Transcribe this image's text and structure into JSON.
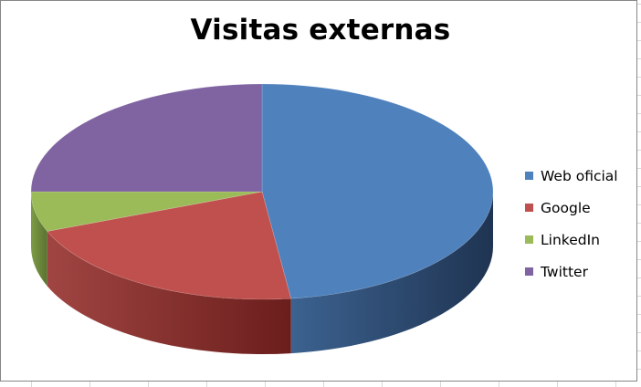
{
  "chart_data": {
    "type": "pie",
    "style": "3d",
    "title": "Visitas externas",
    "slices": [
      {
        "label": "Web oficial",
        "value": 48,
        "color": "#4F81BD",
        "side_dark": "#1F3452",
        "side_light": "#3C6290"
      },
      {
        "label": "Google",
        "value": 21,
        "color": "#C0504D",
        "side_dark": "#6B1E1C",
        "side_light": "#A04542"
      },
      {
        "label": "LinkedIn",
        "value": 6,
        "color": "#9BBB59",
        "side_dark": "#5A7230",
        "side_light": "#7E9C46"
      },
      {
        "label": "Twitter",
        "value": 25,
        "color": "#8064A2",
        "side_dark": "#4A3768",
        "side_light": "#6C5290"
      }
    ],
    "start_angle_deg": 0,
    "direction": "clockwise",
    "legend_position": "right"
  }
}
